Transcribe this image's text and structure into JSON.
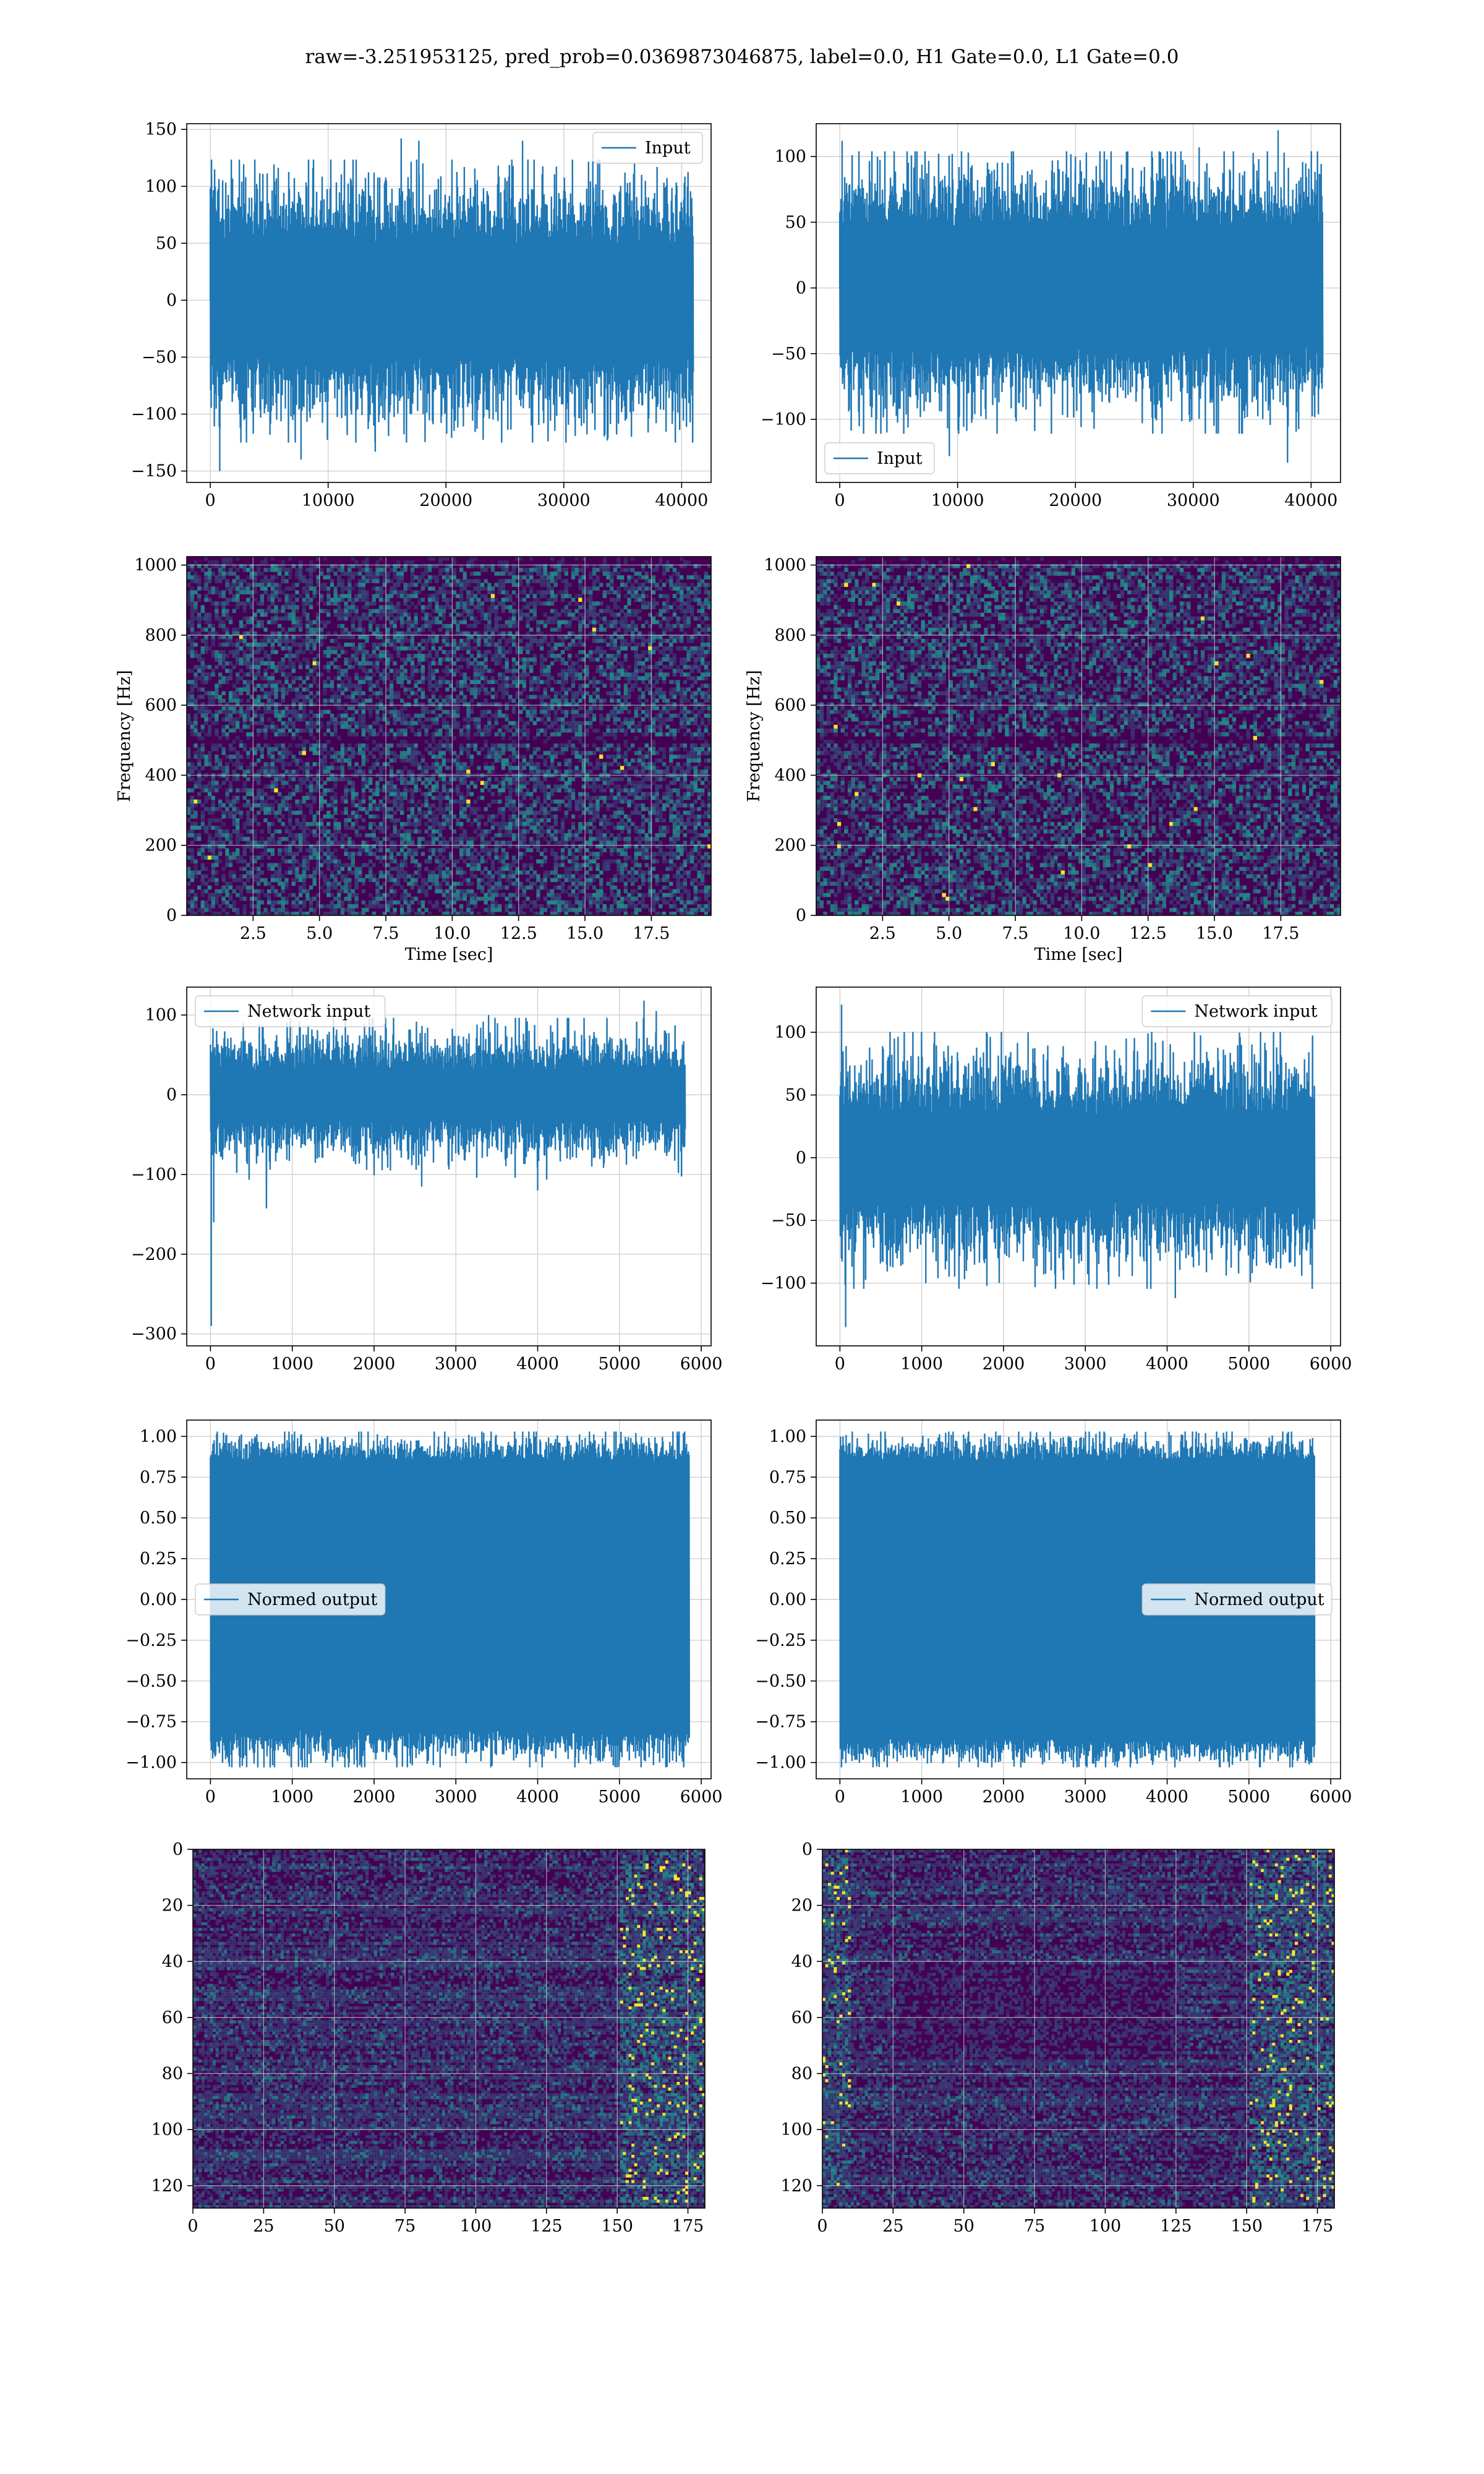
{
  "figure": {
    "suptitle": "raw=-3.251953125, pred_prob=0.0369873046875, label=0.0, H1 Gate=0.0, L1 Gate=0.0"
  },
  "colors": {
    "series": "#1f77b4",
    "grid": "#d0d0d0",
    "viridis_low": "#440154",
    "viridis_mid": "#21918c",
    "viridis_high": "#fde725"
  },
  "chart_data": [
    {
      "id": "input-h1",
      "type": "line",
      "title": "",
      "xlabel": "",
      "ylabel": "",
      "xlim": [
        -2000,
        42500
      ],
      "ylim": [
        -160,
        155
      ],
      "xticks": [
        0,
        10000,
        20000,
        30000,
        40000
      ],
      "yticks": [
        -150,
        -100,
        -50,
        0,
        50,
        100,
        150
      ],
      "legend": {
        "label": "Input",
        "loc": "upper-right"
      },
      "series": [
        {
          "name": "Input",
          "x_range": [
            0,
            40960
          ],
          "body_amplitude": [
            -50,
            50
          ],
          "envelope": [
            -110,
            110
          ],
          "spikes": [
            [
              800,
              -150
            ],
            [
              7700,
              -140
            ],
            [
              14000,
              -133
            ],
            [
              16200,
              142
            ],
            [
              17700,
              140
            ],
            [
              26500,
              140
            ],
            [
              36000,
              120
            ],
            [
              3000,
              108
            ],
            [
              24000,
              -105
            ]
          ]
        }
      ]
    },
    {
      "id": "input-l1",
      "type": "line",
      "title": "",
      "xlabel": "",
      "ylabel": "",
      "xlim": [
        -2000,
        42500
      ],
      "ylim": [
        -148,
        125
      ],
      "xticks": [
        0,
        10000,
        20000,
        30000,
        40000
      ],
      "yticks": [
        -100,
        -50,
        0,
        50,
        100
      ],
      "legend": {
        "label": "Input",
        "loc": "lower-left"
      },
      "series": [
        {
          "name": "Input",
          "x_range": [
            0,
            40960
          ],
          "body_amplitude": [
            -45,
            45
          ],
          "envelope": [
            -95,
            95
          ],
          "spikes": [
            [
              200,
              112
            ],
            [
              9300,
              -128
            ],
            [
              38000,
              -133
            ],
            [
              37200,
              120
            ],
            [
              30500,
              107
            ],
            [
              4000,
              -110
            ],
            [
              20000,
              100
            ]
          ]
        }
      ]
    },
    {
      "id": "spectrogram-h1",
      "type": "heatmap",
      "title": "",
      "xlabel": "Time [sec]",
      "ylabel": "Frequency [Hz]",
      "xlim": [
        0,
        19.75
      ],
      "ylim": [
        0,
        1024
      ],
      "xticks": [
        2.5,
        5.0,
        7.5,
        10.0,
        12.5,
        15.0,
        17.5
      ],
      "yticks": [
        0,
        200,
        400,
        600,
        800,
        1000
      ],
      "colormap": "viridis",
      "dark_bands_hz": [
        500,
        1000
      ]
    },
    {
      "id": "spectrogram-l1",
      "type": "heatmap",
      "title": "",
      "xlabel": "Time [sec]",
      "ylabel": "Frequency [Hz]",
      "xlim": [
        0,
        19.75
      ],
      "ylim": [
        0,
        1024
      ],
      "xticks": [
        2.5,
        5.0,
        7.5,
        10.0,
        12.5,
        15.0,
        17.5
      ],
      "yticks": [
        0,
        200,
        400,
        600,
        800,
        1000
      ],
      "colormap": "viridis",
      "dark_bands_hz": [
        500,
        1000
      ]
    },
    {
      "id": "network-input-h1",
      "type": "line",
      "title": "",
      "xlabel": "",
      "ylabel": "",
      "xlim": [
        -290,
        6120
      ],
      "ylim": [
        -315,
        135
      ],
      "xticks": [
        0,
        1000,
        2000,
        3000,
        4000,
        5000,
        6000
      ],
      "yticks": [
        -300,
        -200,
        -100,
        0,
        100
      ],
      "legend": {
        "label": "Network input",
        "loc": "upper-left"
      },
      "series": [
        {
          "name": "Network input",
          "x_range": [
            0,
            5800
          ],
          "body_amplitude": [
            -30,
            30
          ],
          "envelope": [
            -80,
            80
          ],
          "spikes": [
            [
              10,
              -290
            ],
            [
              40,
              -160
            ],
            [
              4000,
              -120
            ],
            [
              5300,
              118
            ],
            [
              5450,
              105
            ],
            [
              2200,
              -95
            ],
            [
              3400,
              100
            ]
          ]
        }
      ]
    },
    {
      "id": "network-input-l1",
      "type": "line",
      "title": "",
      "xlabel": "",
      "ylabel": "",
      "xlim": [
        -290,
        6120
      ],
      "ylim": [
        -150,
        136
      ],
      "xticks": [
        0,
        1000,
        2000,
        3000,
        4000,
        5000,
        6000
      ],
      "yticks": [
        -100,
        -50,
        0,
        50,
        100
      ],
      "legend": {
        "label": "Network input",
        "loc": "upper-right"
      },
      "series": [
        {
          "name": "Network input",
          "x_range": [
            0,
            5800
          ],
          "body_amplitude": [
            -35,
            35
          ],
          "envelope": [
            -85,
            85
          ],
          "spikes": [
            [
              20,
              122
            ],
            [
              70,
              -135
            ],
            [
              4100,
              -112
            ],
            [
              1050,
              -100
            ],
            [
              3500,
              95
            ],
            [
              2300,
              100
            ]
          ]
        }
      ]
    },
    {
      "id": "normed-output-h1",
      "type": "line",
      "title": "",
      "xlabel": "",
      "ylabel": "",
      "xlim": [
        -290,
        6120
      ],
      "ylim": [
        -1.1,
        1.1
      ],
      "xticks": [
        0,
        1000,
        2000,
        3000,
        4000,
        5000,
        6000
      ],
      "yticks": [
        -1.0,
        -0.75,
        -0.5,
        -0.25,
        0.0,
        0.25,
        0.5,
        0.75,
        1.0
      ],
      "legend": {
        "label": "Normed output",
        "loc": "center-left"
      },
      "series": [
        {
          "name": "Normed output",
          "x_range": [
            0,
            5850
          ],
          "body_amplitude": [
            -0.8,
            0.85
          ],
          "envelope": [
            -1.0,
            1.0
          ],
          "spikes": []
        }
      ]
    },
    {
      "id": "normed-output-l1",
      "type": "line",
      "title": "",
      "xlabel": "",
      "ylabel": "",
      "xlim": [
        -290,
        6120
      ],
      "ylim": [
        -1.1,
        1.1
      ],
      "xticks": [
        0,
        1000,
        2000,
        3000,
        4000,
        5000,
        6000
      ],
      "yticks": [
        -1.0,
        -0.75,
        -0.5,
        -0.25,
        0.0,
        0.25,
        0.5,
        0.75,
        1.0
      ],
      "legend": {
        "label": "Normed output",
        "loc": "center-right"
      },
      "series": [
        {
          "name": "Normed output",
          "x_range": [
            0,
            5800
          ],
          "body_amplitude": [
            -0.85,
            0.85
          ],
          "envelope": [
            -1.0,
            1.0
          ],
          "spikes": []
        }
      ]
    },
    {
      "id": "features-h1",
      "type": "heatmap",
      "title": "",
      "xlabel": "",
      "ylabel": "",
      "xlim": [
        0,
        181
      ],
      "ylim": [
        128,
        0
      ],
      "xticks": [
        0,
        25,
        50,
        75,
        100,
        125,
        150,
        175
      ],
      "yticks": [
        0,
        20,
        40,
        60,
        80,
        100,
        120
      ],
      "colormap": "viridis",
      "bright_regions": "columns 150–181"
    },
    {
      "id": "features-l1",
      "type": "heatmap",
      "title": "",
      "xlabel": "",
      "ylabel": "",
      "xlim": [
        0,
        181
      ],
      "ylim": [
        128,
        0
      ],
      "xticks": [
        0,
        25,
        50,
        75,
        100,
        125,
        150,
        175
      ],
      "yticks": [
        0,
        20,
        40,
        60,
        80,
        100,
        120
      ],
      "colormap": "viridis",
      "bright_regions": "columns 0–10 and 150–181"
    }
  ]
}
